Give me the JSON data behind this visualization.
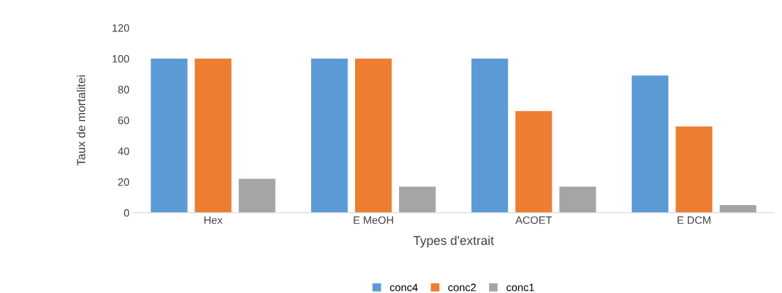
{
  "chart_data": {
    "type": "bar",
    "xlabel": "Types d'extrait",
    "ylabel": "Taux de mortalitei",
    "categories": [
      "Hex",
      "E MeOH",
      "ACOET",
      "E DCM"
    ],
    "series": [
      {
        "name": "conc4",
        "color": "#5b9bd5",
        "values": [
          100,
          100,
          100,
          89
        ]
      },
      {
        "name": "conc2",
        "color": "#ed7d31",
        "values": [
          100,
          100,
          66,
          56
        ]
      },
      {
        "name": "conc1",
        "color": "#a5a5a5",
        "values": [
          22,
          17,
          17,
          5
        ]
      }
    ],
    "ylim": [
      0,
      120
    ],
    "yticks": [
      0,
      20,
      40,
      60,
      80,
      100,
      120
    ],
    "grid": false,
    "legend": "bottom"
  }
}
